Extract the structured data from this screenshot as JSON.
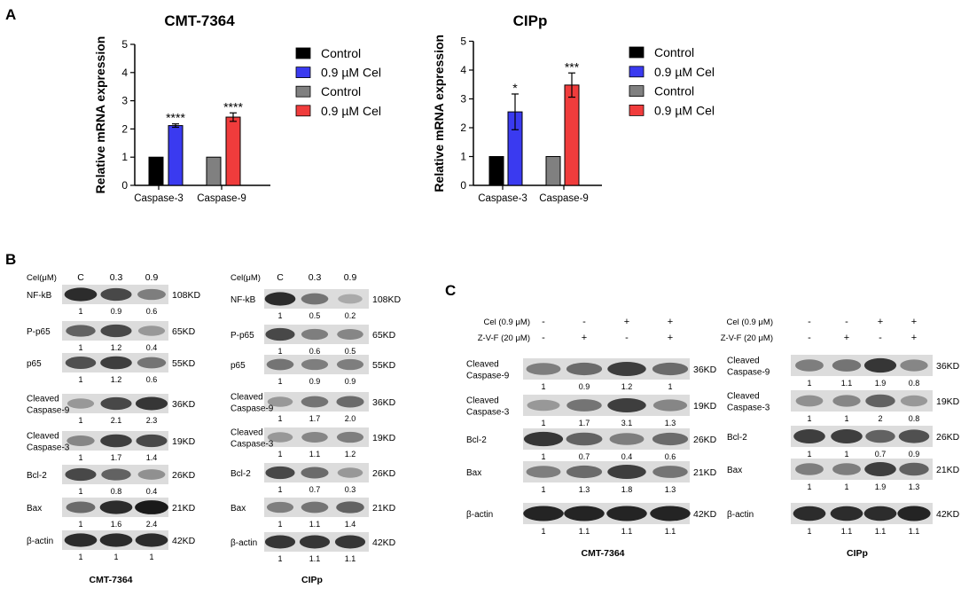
{
  "panels": {
    "A": "A",
    "B": "B",
    "C": "C"
  },
  "chart_data": [
    {
      "type": "bar",
      "title": "CMT-7364",
      "ylabel": "Relative mRNA expression",
      "xlabel": "",
      "ylim": [
        0,
        5
      ],
      "yticks": [
        "0",
        "1",
        "2",
        "3",
        "4",
        "5"
      ],
      "categories": [
        "Caspase-3",
        "Caspase-9"
      ],
      "bars": [
        {
          "group": "Caspase-3",
          "series": "Control",
          "value": 1.0,
          "err": 0,
          "color": "#000000",
          "sig": ""
        },
        {
          "group": "Caspase-3",
          "series": "0.9 µM Cel",
          "value": 2.12,
          "err": 0.06,
          "color": "#3a3af0",
          "sig": "****"
        },
        {
          "group": "Caspase-9",
          "series": "Control",
          "value": 1.0,
          "err": 0,
          "color": "#808080",
          "sig": ""
        },
        {
          "group": "Caspase-9",
          "series": "0.9 µM Cel",
          "value": 2.42,
          "err": 0.15,
          "color": "#f03c3c",
          "sig": "****"
        }
      ],
      "legend": [
        {
          "label": "Control",
          "color": "#000000"
        },
        {
          "label": "0.9 µM Cel",
          "color": "#3a3af0"
        },
        {
          "label": "Control",
          "color": "#808080"
        },
        {
          "label": "0.9 µM Cel",
          "color": "#f03c3c"
        }
      ]
    },
    {
      "type": "bar",
      "title": "CIPp",
      "ylabel": "Relative mRNA expression",
      "xlabel": "",
      "ylim": [
        0,
        5
      ],
      "yticks": [
        "0",
        "1",
        "2",
        "3",
        "4",
        "5"
      ],
      "categories": [
        "Caspase-3",
        "Caspase-9"
      ],
      "bars": [
        {
          "group": "Caspase-3",
          "series": "Control",
          "value": 1.0,
          "err": 0,
          "color": "#000000",
          "sig": ""
        },
        {
          "group": "Caspase-3",
          "series": "0.9 µM Cel",
          "value": 2.55,
          "err": 0.62,
          "color": "#3a3af0",
          "sig": "*"
        },
        {
          "group": "Caspase-9",
          "series": "Control",
          "value": 1.0,
          "err": 0,
          "color": "#808080",
          "sig": ""
        },
        {
          "group": "Caspase-9",
          "series": "0.9 µM Cel",
          "value": 3.48,
          "err": 0.42,
          "color": "#f03c3c",
          "sig": "***"
        }
      ],
      "legend": [
        {
          "label": "Control",
          "color": "#000000"
        },
        {
          "label": "0.9 µM Cel",
          "color": "#3a3af0"
        },
        {
          "label": "Control",
          "color": "#808080"
        },
        {
          "label": "0.9 µM Cel",
          "color": "#f03c3c"
        }
      ]
    }
  ],
  "blots": [
    {
      "title": "CMT-7364",
      "header": [
        "Cel(μM)",
        "C",
        "0.3",
        "0.9"
      ],
      "rows": [
        {
          "label": [
            "NF-kB"
          ],
          "kd": "108KD",
          "intensity": [
            0.9,
            0.75,
            0.45
          ],
          "quant": [
            "1",
            "0.9",
            "0.6"
          ]
        },
        {
          "label": [
            "P-p65"
          ],
          "kd": "65KD",
          "intensity": [
            0.6,
            0.75,
            0.3
          ],
          "quant": [
            "1",
            "1.2",
            "0.4"
          ]
        },
        {
          "label": [
            "p65"
          ],
          "kd": "55KD",
          "intensity": [
            0.7,
            0.8,
            0.5
          ],
          "quant": [
            "1",
            "1.2",
            "0.6"
          ]
        },
        {
          "label": [
            "Cleaved",
            "Caspase-9"
          ],
          "kd": "36KD",
          "intensity": [
            0.3,
            0.75,
            0.85
          ],
          "quant": [
            "1",
            "2.1",
            "2.3"
          ]
        },
        {
          "label": [
            "Cleaved",
            "Caspase-3"
          ],
          "kd": "19KD",
          "intensity": [
            0.4,
            0.8,
            0.75
          ],
          "quant": [
            "1",
            "1.7",
            "1.4"
          ]
        },
        {
          "label": [
            "Bcl-2"
          ],
          "kd": "26KD",
          "intensity": [
            0.75,
            0.6,
            0.35
          ],
          "quant": [
            "1",
            "0.8",
            "0.4"
          ]
        },
        {
          "label": [
            "Bax"
          ],
          "kd": "21KD",
          "intensity": [
            0.55,
            0.9,
            1.0
          ],
          "quant": [
            "1",
            "1.6",
            "2.4"
          ]
        },
        {
          "label": [
            "β-actin"
          ],
          "kd": "42KD",
          "intensity": [
            0.9,
            0.9,
            0.9
          ],
          "quant": [
            "1",
            "1",
            "1"
          ]
        }
      ]
    },
    {
      "title": "CIPp",
      "header": [
        "Cel(μM)",
        "C",
        "0.3",
        "0.9"
      ],
      "rows": [
        {
          "label": [
            "NF-kB"
          ],
          "kd": "108KD",
          "intensity": [
            0.9,
            0.5,
            0.2
          ],
          "quant": [
            "1",
            "0.5",
            "0.2"
          ]
        },
        {
          "label": [
            "P-p65"
          ],
          "kd": "65KD",
          "intensity": [
            0.75,
            0.45,
            0.4
          ],
          "quant": [
            "1",
            "0.6",
            "0.5"
          ]
        },
        {
          "label": [
            "p65"
          ],
          "kd": "55KD",
          "intensity": [
            0.5,
            0.45,
            0.45
          ],
          "quant": [
            "1",
            "0.9",
            "0.9"
          ]
        },
        {
          "label": [
            "Cleaved",
            "Caspase-9"
          ],
          "kd": "36KD",
          "intensity": [
            0.3,
            0.5,
            0.55
          ],
          "quant": [
            "1",
            "1.7",
            "2.0"
          ]
        },
        {
          "label": [
            "Cleaved",
            "Caspase-3"
          ],
          "kd": "19KD",
          "intensity": [
            0.3,
            0.4,
            0.45
          ],
          "quant": [
            "1",
            "1.1",
            "1.2"
          ]
        },
        {
          "label": [
            "Bcl-2"
          ],
          "kd": "26KD",
          "intensity": [
            0.75,
            0.55,
            0.3
          ],
          "quant": [
            "1",
            "0.7",
            "0.3"
          ]
        },
        {
          "label": [
            "Bax"
          ],
          "kd": "21KD",
          "intensity": [
            0.45,
            0.5,
            0.6
          ],
          "quant": [
            "1",
            "1.1",
            "1.4"
          ]
        },
        {
          "label": [
            "β-actin"
          ],
          "kd": "42KD",
          "intensity": [
            0.85,
            0.85,
            0.85
          ],
          "quant": [
            "1",
            "1.1",
            "1.1"
          ]
        }
      ]
    },
    {
      "title": "CMT-7364",
      "header": [
        {
          "label": "Cel (0.9 μM)",
          "signs": [
            "-",
            "-",
            "+",
            "+"
          ]
        },
        {
          "label": "Z-V-F (20 μM)",
          "signs": [
            "-",
            "+",
            "-",
            "+"
          ]
        }
      ],
      "rows": [
        {
          "label": [
            "Cleaved",
            "Caspase-9"
          ],
          "kd": "36KD",
          "intensity": [
            0.45,
            0.55,
            0.8,
            0.55
          ],
          "quant": [
            "1",
            "0.9",
            "1.2",
            "1"
          ]
        },
        {
          "label": [
            "Cleaved",
            "Caspase-3"
          ],
          "kd": "19KD",
          "intensity": [
            0.3,
            0.5,
            0.8,
            0.4
          ],
          "quant": [
            "1",
            "1.7",
            "3.1",
            "1.3"
          ]
        },
        {
          "label": [
            "Bcl-2"
          ],
          "kd": "26KD",
          "intensity": [
            0.85,
            0.6,
            0.45,
            0.55
          ],
          "quant": [
            "1",
            "0.7",
            "0.4",
            "0.6"
          ]
        },
        {
          "label": [
            "Bax"
          ],
          "kd": "21KD",
          "intensity": [
            0.45,
            0.55,
            0.8,
            0.5
          ],
          "quant": [
            "1",
            "1.3",
            "1.8",
            "1.3"
          ]
        },
        {
          "label": [
            "β-actin"
          ],
          "kd": "42KD",
          "intensity": [
            0.95,
            0.95,
            0.95,
            0.95
          ],
          "quant": [
            "1",
            "1.1",
            "1.1",
            "1.1"
          ]
        }
      ]
    },
    {
      "title": "CIPp",
      "header": [
        {
          "label": "Cel (0.9 μM)",
          "signs": [
            "-",
            "-",
            "+",
            "+"
          ]
        },
        {
          "label": "Z-V-F (20 μM)",
          "signs": [
            "-",
            "+",
            "-",
            "+"
          ]
        }
      ],
      "rows": [
        {
          "label": [
            "Cleaved",
            "Caspase-9"
          ],
          "kd": "36KD",
          "intensity": [
            0.45,
            0.5,
            0.85,
            0.4
          ],
          "quant": [
            "1",
            "1.1",
            "1.9",
            "0.8"
          ]
        },
        {
          "label": [
            "Cleaved",
            "Caspase-3"
          ],
          "kd": "19KD",
          "intensity": [
            0.35,
            0.4,
            0.6,
            0.3
          ],
          "quant": [
            "1",
            "1",
            "2",
            "0.8"
          ]
        },
        {
          "label": [
            "Bcl-2"
          ],
          "kd": "26KD",
          "intensity": [
            0.8,
            0.8,
            0.6,
            0.7
          ],
          "quant": [
            "1",
            "1",
            "0.7",
            "0.9"
          ]
        },
        {
          "label": [
            "Bax"
          ],
          "kd": "21KD",
          "intensity": [
            0.45,
            0.45,
            0.8,
            0.6
          ],
          "quant": [
            "1",
            "1",
            "1.9",
            "1.3"
          ]
        },
        {
          "label": [
            "β-actin"
          ],
          "kd": "42KD",
          "intensity": [
            0.9,
            0.9,
            0.9,
            0.95
          ],
          "quant": [
            "1",
            "1.1",
            "1.1",
            "1.1"
          ]
        }
      ]
    }
  ]
}
